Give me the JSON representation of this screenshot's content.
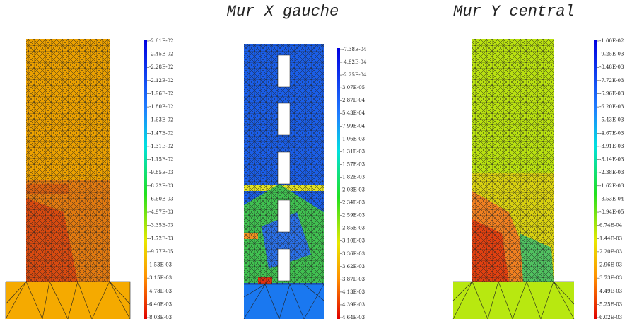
{
  "panels": [
    {
      "scale": [
        "-2.61E-02",
        "-2.45E-02",
        "-2.28E-02",
        "-2.12E-02",
        "-1.96E-02",
        "-1.80E-02",
        "-1.63E-02",
        "-1.47E-02",
        "-1.31E-02",
        "-1.15E-02",
        "-9.85E-03",
        "-8.22E-03",
        "-6.60E-03",
        "-4.97E-03",
        "-3.35E-03",
        "-1.72E-03",
        "-9.77E-05",
        "1.53E-03",
        "3.15E-03",
        "4.78E-03",
        "6.40E-03",
        "8.03E-03"
      ]
    },
    {
      "title": "Mur X gauche",
      "scale": [
        "-7.38E-04",
        "-4.82E-04",
        "-2.25E-04",
        "3.07E-05",
        "2.87E-04",
        "5.43E-04",
        "7.99E-04",
        "1.06E-03",
        "1.31E-03",
        "1.57E-03",
        "1.82E-03",
        "2.08E-03",
        "2.34E-03",
        "2.59E-03",
        "2.85E-03",
        "3.10E-03",
        "3.36E-03",
        "3.62E-03",
        "3.87E-03",
        "4.13E-03",
        "4.39E-03",
        "4.64E-03"
      ]
    },
    {
      "title": "Mur Y central",
      "scale": [
        "-1.00E-02",
        "-9.25E-03",
        "-8.48E-03",
        "-7.72E-03",
        "-6.96E-03",
        "-6.20E-03",
        "-5.43E-03",
        "-4.67E-03",
        "-3.91E-03",
        "-3.14E-03",
        "-2.38E-03",
        "-1.62E-03",
        "-8.53E-04",
        "-8.94E-05",
        "6.74E-04",
        "1.44E-03",
        "2.20E-03",
        "2.96E-03",
        "3.73E-03",
        "4.49E-03",
        "5.25E-03",
        "6.02E-03"
      ]
    }
  ]
}
